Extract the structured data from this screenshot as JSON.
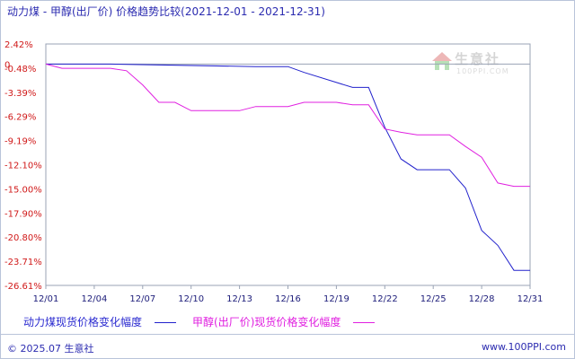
{
  "title": "动力煤 - 甲醇(出厂价) 价格趋势比较(2021-12-01 - 2021-12-31)",
  "footer": {
    "copyright": "© 2025.07 生意社",
    "site": "www.100PPI.com"
  },
  "watermark": {
    "name": "生意社",
    "url": "100PPI.COM"
  },
  "chart_data": {
    "type": "line",
    "y_ticks": [
      "2.42%",
      "0",
      "-0.48%",
      "-3.39%",
      "-6.29%",
      "-9.19%",
      "-12.10%",
      "-15.00%",
      "-17.90%",
      "-20.80%",
      "-23.71%",
      "-26.61%"
    ],
    "x_ticks": [
      "12/01",
      "12/04",
      "12/07",
      "12/10",
      "12/13",
      "12/16",
      "12/19",
      "12/22",
      "12/25",
      "12/28",
      "12/31"
    ],
    "ylim": [
      -26.61,
      2.42
    ],
    "xlim": [
      1,
      31
    ],
    "zero_line": true,
    "grid": false,
    "legend_position": "bottom",
    "series": [
      {
        "name": "动力煤现货价格变化幅度",
        "color": "#2222cc",
        "x": [
          1,
          5,
          14,
          15,
          16,
          17,
          20,
          21,
          22,
          23,
          24,
          25,
          26,
          27,
          28,
          29,
          30,
          31
        ],
        "values": [
          0.0,
          0.0,
          -0.3,
          -0.3,
          -0.3,
          -1.0,
          -2.8,
          -2.8,
          -7.6,
          -11.4,
          -12.7,
          -12.7,
          -12.7,
          -14.9,
          -20.0,
          -21.8,
          -24.8,
          -24.8
        ]
      },
      {
        "name": "甲醇(出厂价)现货价格变化幅度",
        "color": "#e020e0",
        "x": [
          1,
          2,
          5,
          6,
          7,
          8,
          9,
          10,
          11,
          12,
          13,
          14,
          15,
          16,
          17,
          18,
          19,
          20,
          21,
          22,
          23,
          24,
          25,
          26,
          27,
          28,
          29,
          30,
          31
        ],
        "values": [
          0.0,
          -0.5,
          -0.5,
          -0.8,
          -2.5,
          -4.6,
          -4.6,
          -5.6,
          -5.6,
          -5.6,
          -5.6,
          -5.1,
          -5.1,
          -5.1,
          -4.6,
          -4.6,
          -4.6,
          -4.9,
          -4.9,
          -7.8,
          -8.2,
          -8.5,
          -8.5,
          -8.5,
          -9.9,
          -11.2,
          -14.3,
          -14.7,
          -14.7
        ]
      }
    ]
  }
}
